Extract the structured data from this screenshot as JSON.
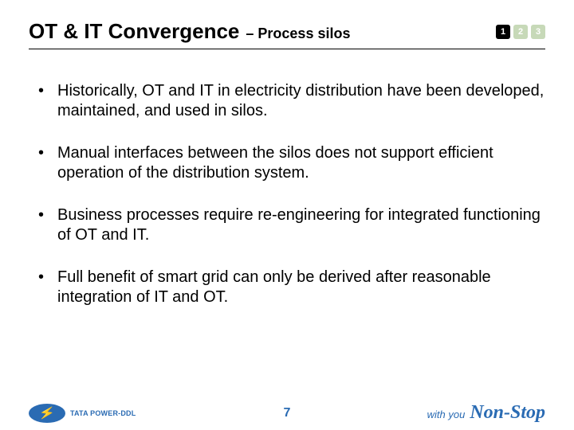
{
  "header": {
    "title_main": "OT & IT Convergence",
    "title_sub": "– Process silos",
    "pills": [
      {
        "label": "1",
        "active": true
      },
      {
        "label": "2",
        "active": false
      },
      {
        "label": "3",
        "active": false
      }
    ]
  },
  "bullets": [
    "Historically, OT and IT in electricity distribution have been developed, maintained, and used in silos.",
    "Manual interfaces between the silos does not support efficient operation of the distribution system.",
    "Business processes require re-engineering for integrated functioning of OT and IT.",
    "Full benefit of smart grid can only be derived after reasonable integration of IT and OT."
  ],
  "footer": {
    "logo_text": "TATA POWER-DDL",
    "page_number": "7",
    "tagline_prefix": "with you",
    "tagline_script": "Non-Stop"
  },
  "colors": {
    "brand_blue": "#2a6bb3",
    "pill_active_bg": "#000000",
    "pill_inactive_bg": "#c7d9b8",
    "text": "#000000",
    "background": "#ffffff"
  },
  "typography": {
    "title_main_fontsize": 26,
    "title_sub_fontsize": 18,
    "body_fontsize": 20,
    "pagenum_fontsize": 16
  }
}
